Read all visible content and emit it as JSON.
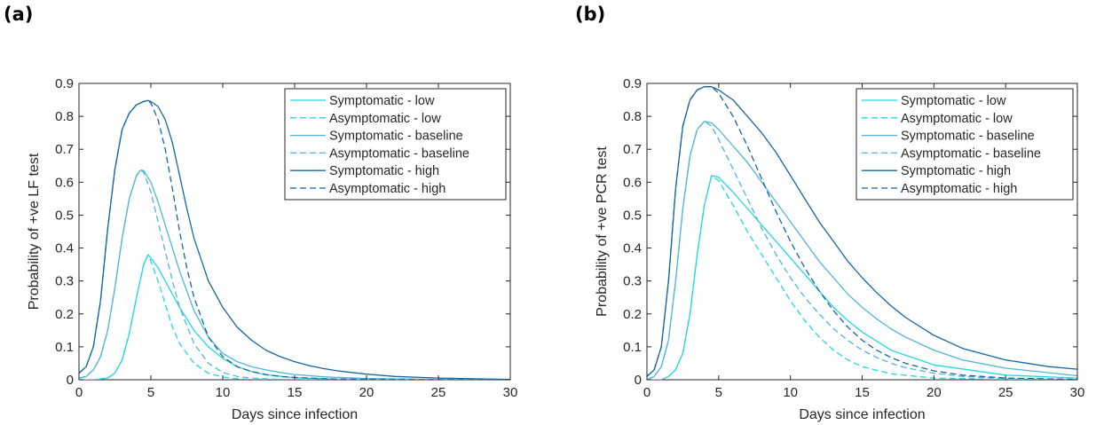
{
  "figure": {
    "colors": {
      "low": "#22d8e0",
      "baseline": "#4fb6da",
      "high": "#1666a4"
    }
  },
  "chart_data": [
    {
      "type": "line",
      "panel_label": "(a)",
      "xlabel": "Days since infection",
      "ylabel": "Probability of +ve LF test",
      "xlim": [
        0,
        30
      ],
      "ylim": [
        0,
        0.9
      ],
      "xticks": [
        0,
        5,
        10,
        15,
        20,
        25,
        30
      ],
      "yticks": [
        0,
        0.1,
        0.2,
        0.3,
        0.4,
        0.5,
        0.6,
        0.7,
        0.8,
        0.9
      ],
      "legend_position": "top-right",
      "grid": false,
      "series": [
        {
          "name": "Symptomatic - low",
          "color_key": "low",
          "dash": false,
          "x": [
            0,
            1,
            2,
            2.5,
            3,
            3.5,
            4,
            4.5,
            4.8,
            5,
            5.5,
            6,
            6.5,
            7,
            8,
            9,
            10,
            11,
            12,
            13,
            15,
            18,
            22,
            30
          ],
          "y": [
            0,
            0,
            0.005,
            0.02,
            0.06,
            0.14,
            0.25,
            0.35,
            0.38,
            0.37,
            0.34,
            0.3,
            0.26,
            0.22,
            0.15,
            0.1,
            0.065,
            0.04,
            0.025,
            0.015,
            0.006,
            0.002,
            0.001,
            0
          ]
        },
        {
          "name": "Asymptomatic - low",
          "color_key": "low",
          "dash": true,
          "x": [
            0,
            1,
            2,
            2.5,
            3,
            3.5,
            4,
            4.5,
            4.8,
            5,
            5.5,
            6,
            6.5,
            7,
            8,
            9,
            10,
            11,
            12,
            15,
            20,
            30
          ],
          "y": [
            0,
            0,
            0.005,
            0.02,
            0.06,
            0.14,
            0.25,
            0.35,
            0.38,
            0.36,
            0.3,
            0.23,
            0.16,
            0.11,
            0.05,
            0.02,
            0.008,
            0.003,
            0.001,
            0,
            0,
            0
          ]
        },
        {
          "name": "Symptomatic - baseline",
          "color_key": "baseline",
          "dash": false,
          "x": [
            0,
            0.5,
            1,
            1.5,
            2,
            2.5,
            3,
            3.5,
            4,
            4.3,
            4.5,
            5,
            5.5,
            6,
            6.5,
            7,
            8,
            9,
            10,
            11,
            12,
            13,
            14,
            15,
            17,
            20,
            25,
            30
          ],
          "y": [
            0.005,
            0.01,
            0.03,
            0.07,
            0.15,
            0.28,
            0.43,
            0.55,
            0.62,
            0.637,
            0.635,
            0.6,
            0.54,
            0.47,
            0.4,
            0.33,
            0.21,
            0.13,
            0.08,
            0.055,
            0.04,
            0.03,
            0.022,
            0.016,
            0.009,
            0.004,
            0.001,
            0
          ]
        },
        {
          "name": "Asymptomatic - baseline",
          "color_key": "baseline",
          "dash": true,
          "x": [
            0,
            0.5,
            1,
            1.5,
            2,
            2.5,
            3,
            3.5,
            4,
            4.3,
            4.5,
            5,
            5.5,
            6,
            6.5,
            7,
            8,
            9,
            10,
            11,
            12,
            14,
            16,
            20,
            30
          ],
          "y": [
            0.005,
            0.01,
            0.03,
            0.07,
            0.15,
            0.28,
            0.43,
            0.55,
            0.62,
            0.637,
            0.63,
            0.57,
            0.48,
            0.39,
            0.3,
            0.22,
            0.11,
            0.05,
            0.022,
            0.01,
            0.005,
            0.001,
            0,
            0,
            0
          ]
        },
        {
          "name": "Symptomatic - high",
          "color_key": "high",
          "dash": false,
          "x": [
            0,
            0.5,
            1,
            1.5,
            2,
            2.5,
            3,
            3.5,
            4,
            4.5,
            4.8,
            5,
            5.5,
            6,
            6.5,
            7,
            7.5,
            8,
            9,
            10,
            11,
            12,
            13,
            14,
            15,
            16,
            17,
            18,
            20,
            22,
            25,
            30
          ],
          "y": [
            0.02,
            0.04,
            0.1,
            0.24,
            0.46,
            0.64,
            0.76,
            0.81,
            0.835,
            0.845,
            0.848,
            0.845,
            0.83,
            0.79,
            0.72,
            0.62,
            0.52,
            0.43,
            0.3,
            0.22,
            0.16,
            0.12,
            0.09,
            0.07,
            0.055,
            0.043,
            0.034,
            0.027,
            0.017,
            0.01,
            0.005,
            0.001
          ]
        },
        {
          "name": "Asymptomatic - high",
          "color_key": "high",
          "dash": true,
          "x": [
            0,
            0.5,
            1,
            1.5,
            2,
            2.5,
            3,
            3.5,
            4,
            4.5,
            4.8,
            5,
            5.5,
            6,
            6.5,
            7,
            7.5,
            8,
            9,
            10,
            11,
            12,
            13,
            14,
            15,
            17,
            20,
            25,
            30
          ],
          "y": [
            0.02,
            0.04,
            0.1,
            0.24,
            0.46,
            0.64,
            0.76,
            0.81,
            0.835,
            0.845,
            0.848,
            0.84,
            0.79,
            0.7,
            0.58,
            0.45,
            0.34,
            0.25,
            0.13,
            0.07,
            0.04,
            0.025,
            0.016,
            0.01,
            0.007,
            0.003,
            0.001,
            0,
            0
          ]
        }
      ]
    },
    {
      "type": "line",
      "panel_label": "(b)",
      "xlabel": "Days since infection",
      "ylabel": "Probability of +ve PCR test",
      "xlim": [
        0,
        30
      ],
      "ylim": [
        0,
        0.9
      ],
      "xticks": [
        0,
        5,
        10,
        15,
        20,
        25,
        30
      ],
      "yticks": [
        0,
        0.1,
        0.2,
        0.3,
        0.4,
        0.5,
        0.6,
        0.7,
        0.8,
        0.9
      ],
      "legend_position": "top-right",
      "grid": false,
      "series": [
        {
          "name": "Symptomatic - low",
          "color_key": "low",
          "dash": false,
          "x": [
            0,
            1,
            1.5,
            2,
            2.5,
            3,
            3.5,
            4,
            4.5,
            5,
            6,
            7,
            8,
            9,
            10,
            11,
            12,
            13,
            14,
            15,
            17,
            20,
            25,
            30
          ],
          "y": [
            0,
            0,
            0.01,
            0.03,
            0.08,
            0.2,
            0.38,
            0.53,
            0.62,
            0.615,
            0.57,
            0.52,
            0.47,
            0.42,
            0.37,
            0.32,
            0.27,
            0.22,
            0.18,
            0.145,
            0.09,
            0.045,
            0.014,
            0.005
          ]
        },
        {
          "name": "Asymptomatic - low",
          "color_key": "low",
          "dash": true,
          "x": [
            0,
            1,
            1.5,
            2,
            2.5,
            3,
            3.5,
            4,
            4.5,
            5,
            6,
            7,
            8,
            9,
            10,
            11,
            12,
            13,
            14,
            15,
            17,
            20,
            25,
            30
          ],
          "y": [
            0,
            0,
            0.01,
            0.03,
            0.08,
            0.2,
            0.38,
            0.53,
            0.62,
            0.605,
            0.53,
            0.45,
            0.38,
            0.31,
            0.24,
            0.18,
            0.13,
            0.09,
            0.06,
            0.04,
            0.018,
            0.005,
            0.001,
            0
          ]
        },
        {
          "name": "Symptomatic - baseline",
          "color_key": "baseline",
          "dash": false,
          "x": [
            0,
            0.5,
            1,
            1.5,
            2,
            2.5,
            3,
            3.5,
            4,
            4.5,
            5,
            6,
            7,
            8,
            9,
            10,
            11,
            12,
            13,
            14,
            15,
            16,
            17,
            18,
            20,
            22,
            25,
            30
          ],
          "y": [
            0,
            0.01,
            0.04,
            0.12,
            0.3,
            0.52,
            0.68,
            0.76,
            0.785,
            0.78,
            0.76,
            0.71,
            0.66,
            0.6,
            0.54,
            0.48,
            0.42,
            0.36,
            0.31,
            0.26,
            0.22,
            0.185,
            0.155,
            0.13,
            0.09,
            0.06,
            0.035,
            0.012
          ]
        },
        {
          "name": "Asymptomatic - baseline",
          "color_key": "baseline",
          "dash": true,
          "x": [
            0,
            0.5,
            1,
            1.5,
            2,
            2.5,
            3,
            3.5,
            4,
            4.5,
            5,
            6,
            7,
            8,
            9,
            10,
            11,
            12,
            13,
            14,
            15,
            16,
            17,
            18,
            20,
            22,
            25,
            30
          ],
          "y": [
            0,
            0.01,
            0.04,
            0.12,
            0.3,
            0.52,
            0.68,
            0.76,
            0.785,
            0.77,
            0.73,
            0.64,
            0.55,
            0.46,
            0.38,
            0.31,
            0.25,
            0.2,
            0.155,
            0.12,
            0.09,
            0.068,
            0.05,
            0.037,
            0.02,
            0.01,
            0.004,
            0.001
          ]
        },
        {
          "name": "Symptomatic - high",
          "color_key": "high",
          "dash": false,
          "x": [
            0,
            0.5,
            1,
            1.5,
            2,
            2.5,
            3,
            3.5,
            4,
            4.5,
            5,
            6,
            7,
            8,
            9,
            10,
            11,
            12,
            13,
            14,
            15,
            16,
            17,
            18,
            20,
            22,
            25,
            28,
            30
          ],
          "y": [
            0.01,
            0.03,
            0.1,
            0.3,
            0.58,
            0.77,
            0.85,
            0.88,
            0.89,
            0.89,
            0.88,
            0.85,
            0.8,
            0.75,
            0.69,
            0.62,
            0.55,
            0.48,
            0.42,
            0.36,
            0.31,
            0.265,
            0.225,
            0.19,
            0.135,
            0.095,
            0.06,
            0.04,
            0.032
          ]
        },
        {
          "name": "Asymptomatic - high",
          "color_key": "high",
          "dash": true,
          "x": [
            0,
            0.5,
            1,
            1.5,
            2,
            2.5,
            3,
            3.5,
            4,
            4.5,
            5,
            6,
            7,
            8,
            9,
            10,
            11,
            12,
            13,
            14,
            15,
            16,
            17,
            18,
            20,
            22,
            25,
            30
          ],
          "y": [
            0.01,
            0.03,
            0.1,
            0.3,
            0.58,
            0.77,
            0.85,
            0.88,
            0.89,
            0.89,
            0.87,
            0.8,
            0.71,
            0.61,
            0.51,
            0.42,
            0.34,
            0.27,
            0.21,
            0.16,
            0.12,
            0.09,
            0.068,
            0.05,
            0.027,
            0.014,
            0.005,
            0.001
          ]
        }
      ]
    }
  ]
}
